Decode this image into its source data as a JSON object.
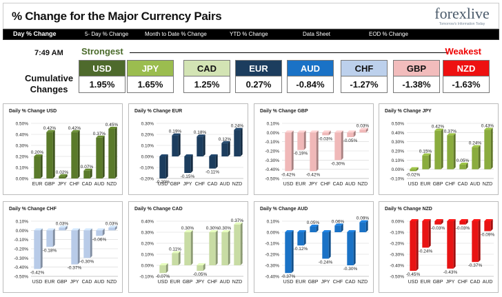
{
  "header": {
    "title": "% Change for the Major Currency Pairs",
    "logo_text": "forexlive",
    "logo_tagline": "Tomorrow's Information Today"
  },
  "nav": {
    "tabs": [
      {
        "label": "Day % Change",
        "selected": true
      },
      {
        "label": "5- Day % Change",
        "selected": false
      },
      {
        "label": "Month to Date % Change",
        "selected": false
      },
      {
        "label": "YTD % Change",
        "selected": false
      },
      {
        "label": "Data Sheet",
        "selected": false
      },
      {
        "label": "EOD % Change",
        "selected": false
      }
    ]
  },
  "summary": {
    "time": "7:49 AM",
    "strongest_label": "Strongest",
    "weakest_label": "Weakest",
    "cumulative_label_1": "Cumulative",
    "cumulative_label_2": "Changes",
    "currencies": [
      {
        "code": "USD",
        "value": "1.95%",
        "bg": "#4e6a2c",
        "fg": "#ffffff"
      },
      {
        "code": "JPY",
        "value": "1.65%",
        "bg": "#9bbd4f",
        "fg": "#ffffff"
      },
      {
        "code": "CAD",
        "value": "1.25%",
        "bg": "#d3e4b4",
        "fg": "#111111"
      },
      {
        "code": "EUR",
        "value": "0.27%",
        "bg": "#1c3d5e",
        "fg": "#ffffff"
      },
      {
        "code": "AUD",
        "value": "-0.84%",
        "bg": "#1a72c6",
        "fg": "#ffffff"
      },
      {
        "code": "CHF",
        "value": "-1.27%",
        "bg": "#bcd0ec",
        "fg": "#111111"
      },
      {
        "code": "GBP",
        "value": "-1.38%",
        "bg": "#f2bcbc",
        "fg": "#111111"
      },
      {
        "code": "NZD",
        "value": "-1.63%",
        "bg": "#ee1111",
        "fg": "#ffffff"
      }
    ]
  },
  "chart_data": [
    {
      "type": "bar",
      "title": "Daily % Change USD",
      "color": "#5a7a2a",
      "categories": [
        "EUR",
        "GBP",
        "JPY",
        "CHF",
        "CAD",
        "AUD",
        "NZD"
      ],
      "values": [
        0.2,
        0.42,
        0.02,
        0.42,
        0.07,
        0.37,
        0.45
      ],
      "labels": [
        "0.20%",
        "0.42%",
        "0.02%",
        "0.42%",
        "0.07%",
        "0.37%",
        "0.45%"
      ],
      "ylim": [
        0,
        0.5
      ],
      "ticks": [
        0.5,
        0.4,
        0.3,
        0.2,
        0.1,
        0
      ],
      "tick_labels": [
        "0.50%",
        "0.40%",
        "0.30%",
        "0.20%",
        "0.10%",
        "0.00%"
      ]
    },
    {
      "type": "bar",
      "title": "Daily % Change EUR",
      "color": "#1c3d5e",
      "categories": [
        "USD",
        "GBP",
        "JPY",
        "CHF",
        "CAD",
        "AUD",
        "NZD"
      ],
      "values": [
        -0.2,
        0.19,
        -0.15,
        0.18,
        -0.11,
        0.12,
        0.24
      ],
      "labels": [
        "-0.20%",
        "0.19%",
        "-0.15%",
        "0.18%",
        "-0.11%",
        "0.12%",
        "0.24%"
      ],
      "ylim": [
        -0.2,
        0.3
      ],
      "ticks": [
        0.3,
        0.2,
        0.1,
        0,
        -0.1,
        -0.2
      ],
      "tick_labels": [
        "0.30%",
        "0.20%",
        "0.10%",
        "0.00%",
        "-0.10%",
        "-0.20%"
      ]
    },
    {
      "type": "bar",
      "title": "Daily % Change GBP",
      "color": "#f0b8b8",
      "categories": [
        "USD",
        "EUR",
        "JPY",
        "CHF",
        "CAD",
        "AUD",
        "NZD"
      ],
      "values": [
        -0.42,
        -0.19,
        -0.42,
        -0.03,
        -0.3,
        -0.05,
        0.03
      ],
      "labels": [
        "-0.42%",
        "-0.19%",
        "-0.42%",
        "-0.03%",
        "-0.30%",
        "-0.05%",
        "0.03%"
      ],
      "ylim": [
        -0.5,
        0.1
      ],
      "ticks": [
        0.1,
        0,
        -0.1,
        -0.2,
        -0.3,
        -0.4,
        -0.5
      ],
      "tick_labels": [
        "0.10%",
        "0.00%",
        "-0.10%",
        "-0.20%",
        "-0.30%",
        "-0.40%",
        "-0.50%"
      ]
    },
    {
      "type": "bar",
      "title": "Daily % Change JPY",
      "color": "#8aac3e",
      "categories": [
        "USD",
        "EUR",
        "GBP",
        "CHF",
        "CAD",
        "AUD",
        "NZD"
      ],
      "values": [
        -0.02,
        0.15,
        0.42,
        0.37,
        0.05,
        0.24,
        0.43
      ],
      "labels": [
        "-0.02%",
        "0.15%",
        "0.42%",
        "0.37%",
        "0.05%",
        "0.24%",
        "0.43%"
      ],
      "ylim": [
        -0.1,
        0.5
      ],
      "ticks": [
        0.5,
        0.4,
        0.3,
        0.2,
        0.1,
        0,
        -0.1
      ],
      "tick_labels": [
        "0.50%",
        "0.40%",
        "0.30%",
        "0.20%",
        "0.10%",
        "0.00%",
        "-0.10%"
      ]
    },
    {
      "type": "bar",
      "title": "Daily % Change CHF",
      "color": "#b8cbe8",
      "categories": [
        "USD",
        "EUR",
        "GBP",
        "JPY",
        "CAD",
        "AUD",
        "NZD"
      ],
      "values": [
        -0.42,
        -0.18,
        0.03,
        -0.37,
        -0.3,
        -0.06,
        0.03
      ],
      "labels": [
        "-0.42%",
        "-0.18%",
        "0.03%",
        "-0.37%",
        "-0.30%",
        "-0.06%",
        "0.03%"
      ],
      "ylim": [
        -0.5,
        0.1
      ],
      "ticks": [
        0.1,
        0,
        -0.1,
        -0.2,
        -0.3,
        -0.4,
        -0.5
      ],
      "tick_labels": [
        "0.10%",
        "0.00%",
        "-0.10%",
        "-0.20%",
        "-0.30%",
        "-0.40%",
        "-0.50%"
      ]
    },
    {
      "type": "bar",
      "title": "Daily % Change CAD",
      "color": "#c8dca4",
      "categories": [
        "USD",
        "EUR",
        "GBP",
        "JPY",
        "CHF",
        "AUD",
        "NZD"
      ],
      "values": [
        -0.07,
        0.11,
        0.3,
        -0.05,
        0.3,
        0.3,
        0.37
      ],
      "labels": [
        "-0.07%",
        "0.11%",
        "0.30%",
        "-0.05%",
        "0.30%",
        "0.30%",
        "0.37%"
      ],
      "ylim": [
        -0.1,
        0.4
      ],
      "ticks": [
        0.4,
        0.3,
        0.2,
        0.1,
        0,
        -0.1
      ],
      "tick_labels": [
        "0.40%",
        "0.30%",
        "0.20%",
        "0.10%",
        "0.00%",
        "-0.10%"
      ]
    },
    {
      "type": "bar",
      "title": "Daily % Change AUD",
      "color": "#1a72c6",
      "categories": [
        "USD",
        "EUR",
        "GBP",
        "JPY",
        "CHF",
        "CAD",
        "NZD"
      ],
      "values": [
        -0.37,
        -0.12,
        0.05,
        -0.24,
        0.06,
        -0.3,
        0.09
      ],
      "labels": [
        "-0.37%",
        "-0.12%",
        "0.05%",
        "-0.24%",
        "0.06%",
        "-0.30%",
        "0.09%"
      ],
      "ylim": [
        -0.4,
        0.1
      ],
      "ticks": [
        0.1,
        0,
        -0.1,
        -0.2,
        -0.3,
        -0.4
      ],
      "tick_labels": [
        "0.10%",
        "0.00%",
        "-0.10%",
        "-0.20%",
        "-0.30%",
        "-0.40%"
      ]
    },
    {
      "type": "bar",
      "title": "Daily % Change NZD",
      "color": "#e81414",
      "categories": [
        "USD",
        "EUR",
        "GBP",
        "JPY",
        "CHF",
        "CAD",
        "AUD"
      ],
      "values": [
        -0.45,
        -0.24,
        -0.03,
        -0.43,
        -0.03,
        -0.37,
        -0.09
      ],
      "labels": [
        "-0.45%",
        "-0.24%",
        "-0.03%",
        "-0.43%",
        "-0.03%",
        "-0.37%",
        "-0.09%"
      ],
      "ylim": [
        -0.5,
        0
      ],
      "ticks": [
        0,
        -0.1,
        -0.2,
        -0.3,
        -0.4,
        -0.5
      ],
      "tick_labels": [
        "0.00%",
        "-0.10%",
        "-0.20%",
        "-0.30%",
        "-0.40%",
        "-0.50%"
      ]
    }
  ]
}
